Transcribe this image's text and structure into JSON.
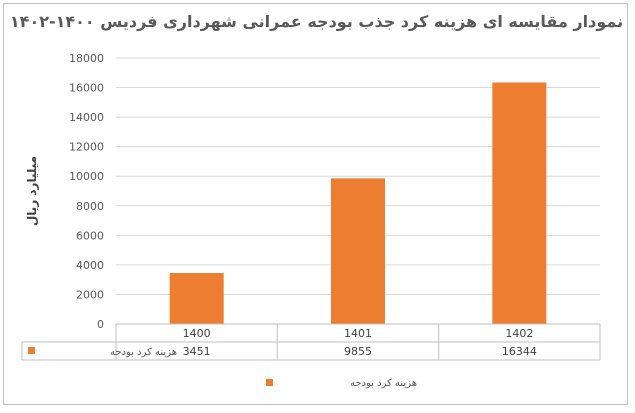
{
  "chart_data": {
    "type": "bar",
    "title": "نمودار مقایسه ای هزینه کرد جذب بودجه عمرانی شهرداری فردیس ۱۴۰۰-۱۴۰۲",
    "ylabel": "میلیارد ریال",
    "xlabel": "",
    "categories": [
      "1400",
      "1401",
      "1402"
    ],
    "series": [
      {
        "name": "هزینه کرد بودجه",
        "values": [
          3451,
          9855,
          16344
        ],
        "color": "#ED7D31"
      }
    ],
    "ylim": [
      0,
      18000
    ],
    "yticks": [
      "0",
      "2000",
      "4000",
      "6000",
      "8000",
      "10000",
      "12000",
      "14000",
      "16000",
      "18000"
    ],
    "grid": true,
    "data_table": true,
    "legend": "bottom"
  }
}
